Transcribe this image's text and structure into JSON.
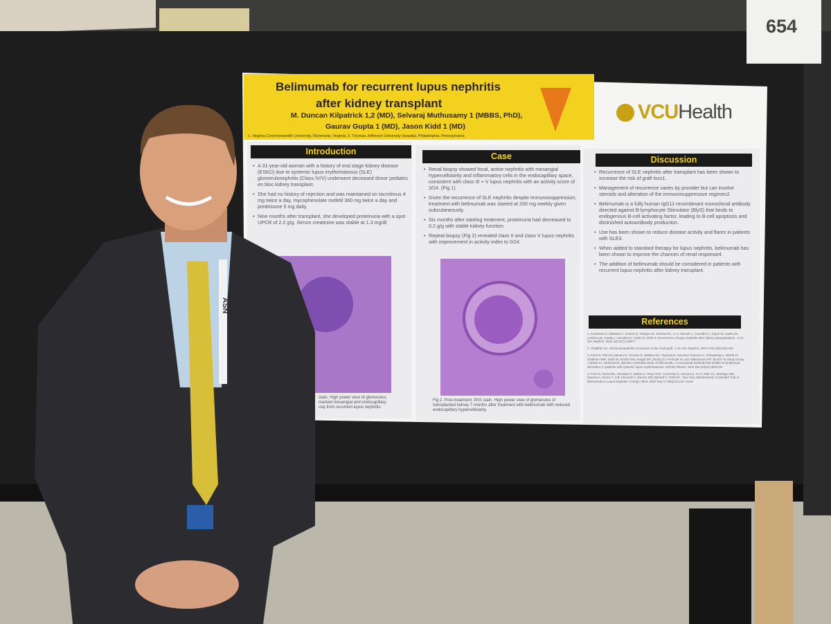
{
  "board_number": "654",
  "poster": {
    "title": [
      "Belimumab for recurrent lupus nephritis",
      "after kidney transplant"
    ],
    "authors": [
      "M. Duncan Kilpatrick 1,2 (MD), Selvaraj Muthusamy 1 (MBBS, PhD),",
      "Gaurav Gupta 1 (MD), Jason Kidd 1 (MD)"
    ],
    "affiliation": "1. Virginia Commonwealth University, Richmond, Virginia; 2. Thomas Jefferson University Hospital, Philadelphia, Pennsylvania",
    "logo": {
      "bold": "VCU",
      "light": "Health"
    },
    "introduction": {
      "heading": "Introduction",
      "bullets": [
        "A 31-year-old woman with a history of end stage kidney disease (ESKD) due to systemic lupus erythematosus (SLE) glomerulonephritis (Class IV/V) underwent deceased donor pediatric en bloc kidney transplant.",
        "She had no history of rejection and was maintained on tacrolimus 4 mg twice a day, mycophenolate mofetil 360 mg twice a day and prednisone 5 mg daily.",
        "Nine months after transplant, she developed proteinuria with a spot UPCR of 2.2 g/g. Serum creatinine was stable at 1.3 mg/dl"
      ],
      "caption": [
        "stain. High power view of glomerulus",
        "marked mesangial and endocapillary",
        "cia) from recurrent lupus nephritis."
      ]
    },
    "case": {
      "heading": "Case",
      "bullets": [
        "Renal biopsy showed focal, active nephritis with mesangial hypercellularity and inflammatory cells in the endocapillary space, consistent with class III + V lupus nephritis with an activity score of 3/24. (Fig 1).",
        "Given the recurrence of SLE nephritis despite immunosuppression, treatment with belimumab was started at 200 mg weekly given subcutaneously.",
        "Six months after starting treatment, proteinuria had decreased to 0.2 g/g with stable kidney function.",
        "Repeat biopsy (Fig 2) revealed class II and class V lupus nephritis with improvement in activity index to 0/24."
      ],
      "caption": "Fig 2. Post-treatment. PAS stain. High power view of glomerulus of transplanted kidney 7 months after treatment with belimumab with reduced endocapillary hypercellularity."
    },
    "discussion": {
      "heading": "Discussion",
      "bullets": [
        "Recurrence of SLE nephritis after transplant has been shown to increase the risk of graft loss1.",
        "Management of recurrence varies by provider but can involve steroids and alteration of the immunosuppressive regimen2.",
        "Belimumab is a fully human IgG1λ recombinant monoclonal antibody directed against B-lymphocyte Stimulator (BlyS) that binds to endogenous B-cell activating factor, leading to B-cell apoptosis and diminished autoantibody production.",
        "Use has been shown to reduce disease activity and flares in patients with SLE3.",
        "When added to standard therapy for lupus nephritis, belimumab has been shown to improve the chances of renal response4.",
        "The addition of belimumab should be considered in patients with recurrent lupus nephritis after kidney transplant."
      ]
    },
    "references": {
      "heading": "References",
      "items": [
        "1. Contreras G, Mattiazzi A, Guerra G, Ortega LM, Tozman EC, Li H, Tamariz L, Carvalho C, Kupin W, Ladino M, LeClercq B, Jaraba I, Carvalho D, Carles E, Roth D. Recurrence of lupus nephritis after kidney transplantation. J Am Soc Nephrol. 2010 Jul;21(7):1200-7.",
        "2. Chadban SJ. Glomerulonephritis recurrence in the renal graft. J Am Soc Nephrol. 2001 Feb;12(2):394-402.",
        "3. Furie R, Petri M, Zamani O, Cervera R, Wallace DJ, Tegzová D, Sanchez-Guerrero J, Schwarting A, Merrill JT, Chatham WW, Stohl W, Ginzler EM, Hough DR, Zhong ZJ, Freimuth W, van Vollenhoven RF; BLISS-76 Study Group. A phase III, randomized, placebo-controlled study of belimumab, a monoclonal antibody that inhibits B lymphocyte stimulator, in patients with systemic lupus erythematosus. Arthritis Rheum. 2011 Dec;63(12):3918-30.",
        "4. Furie R, Rovin BH, Houssiau F, Malvar A, Teng YKO, Contreras G, Amoura Z, Yu X, Mok CC, Santiago MB, Saxena A, Green Y, Ji B, Kleoudis C, Burriss SW, Barnett C, Roth DA. Two-Year, Randomized, Controlled Trial of Belimumab in Lupus Nephritis. N Engl J Med. 2020 Sep 17;383(12):1117-1128."
      ]
    }
  },
  "lanyard": "ASN"
}
